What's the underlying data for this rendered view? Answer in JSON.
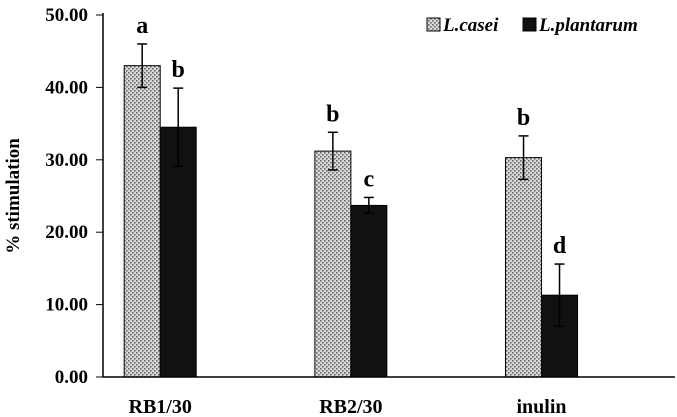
{
  "chart_data": {
    "type": "bar",
    "title": "",
    "xlabel": "",
    "ylabel": "% stimulation",
    "ylim": [
      0,
      50
    ],
    "yticks": [
      "0.00",
      "10.00",
      "20.00",
      "30.00",
      "40.00",
      "50.00"
    ],
    "categories": [
      "RB1/30",
      "RB2/30",
      "inulin"
    ],
    "legend_position": "top-right",
    "grid": false,
    "series": [
      {
        "name": "L.casei",
        "values": [
          43.0,
          31.2,
          30.3
        ],
        "errors": [
          3.0,
          2.6,
          3.0
        ],
        "sig_labels": [
          "a",
          "b",
          "b"
        ],
        "color": "#cccccc",
        "pattern": "dotted-grey"
      },
      {
        "name": "L.plantarum",
        "values": [
          34.5,
          23.7,
          11.3
        ],
        "errors": [
          5.4,
          1.1,
          4.3
        ],
        "sig_labels": [
          "b",
          "c",
          "d"
        ],
        "color": "#111111",
        "pattern": "solid-black"
      }
    ]
  }
}
